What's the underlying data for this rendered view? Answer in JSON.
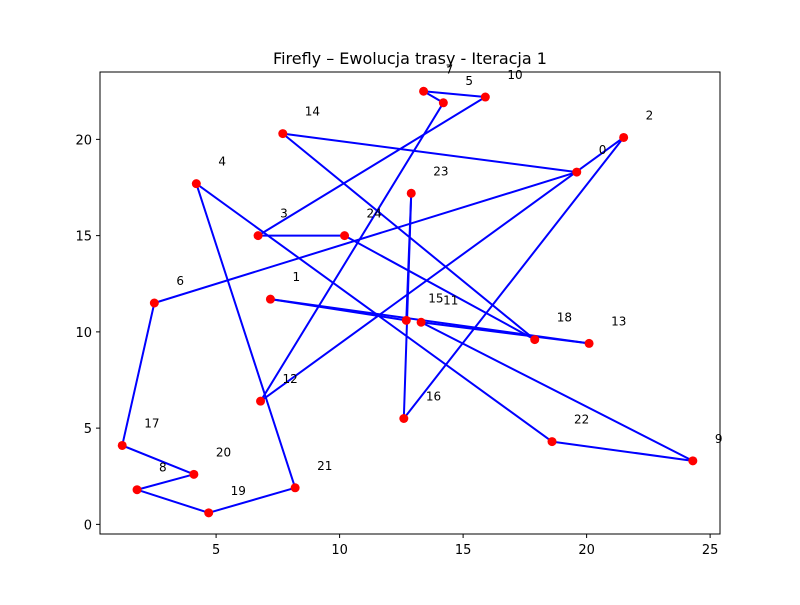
{
  "chart_data": {
    "type": "line",
    "title": "Firefly – Ewolucja trasy - Iteracja 1",
    "xlabel": "",
    "ylabel": "",
    "xlim": [
      0.3,
      25.4
    ],
    "ylim": [
      -0.5,
      23.5
    ],
    "x_ticks": [
      5,
      10,
      15,
      20,
      25
    ],
    "y_ticks": [
      0,
      5,
      10,
      15,
      20
    ],
    "grid": false,
    "colors": {
      "route": "#0000ff",
      "point": "#ff0000"
    },
    "cities": [
      {
        "label": "0",
        "x": 19.6,
        "y": 18.3
      },
      {
        "label": "1",
        "x": 7.2,
        "y": 11.7
      },
      {
        "label": "2",
        "x": 21.5,
        "y": 20.1
      },
      {
        "label": "3",
        "x": 6.7,
        "y": 15.0
      },
      {
        "label": "4",
        "x": 4.2,
        "y": 17.7
      },
      {
        "label": "5",
        "x": 14.2,
        "y": 21.9
      },
      {
        "label": "6",
        "x": 2.5,
        "y": 11.5
      },
      {
        "label": "7",
        "x": 13.4,
        "y": 22.5
      },
      {
        "label": "8",
        "x": 1.8,
        "y": 1.8
      },
      {
        "label": "9",
        "x": 24.3,
        "y": 3.3
      },
      {
        "label": "10",
        "x": 15.9,
        "y": 22.2
      },
      {
        "label": "11",
        "x": 13.3,
        "y": 10.5
      },
      {
        "label": "12",
        "x": 6.8,
        "y": 6.4
      },
      {
        "label": "13",
        "x": 20.1,
        "y": 9.4
      },
      {
        "label": "14",
        "x": 7.7,
        "y": 20.3
      },
      {
        "label": "15",
        "x": 12.7,
        "y": 10.6
      },
      {
        "label": "16",
        "x": 12.6,
        "y": 5.5
      },
      {
        "label": "17",
        "x": 1.2,
        "y": 4.1
      },
      {
        "label": "18",
        "x": 17.9,
        "y": 9.6
      },
      {
        "label": "19",
        "x": 4.7,
        "y": 0.6
      },
      {
        "label": "20",
        "x": 4.1,
        "y": 2.6
      },
      {
        "label": "21",
        "x": 8.2,
        "y": 1.9
      },
      {
        "label": "22",
        "x": 18.6,
        "y": 4.3
      },
      {
        "label": "23",
        "x": 12.9,
        "y": 17.2
      },
      {
        "label": "24",
        "x": 10.2,
        "y": 15.0
      }
    ],
    "route": [
      "3",
      "10",
      "7",
      "5",
      "12",
      "2",
      "16",
      "23",
      "15",
      "1",
      "13",
      "11",
      "9",
      "22",
      "4",
      "21",
      "19",
      "8",
      "20",
      "17",
      "6",
      "0",
      "14",
      "18",
      "24",
      "3"
    ]
  }
}
